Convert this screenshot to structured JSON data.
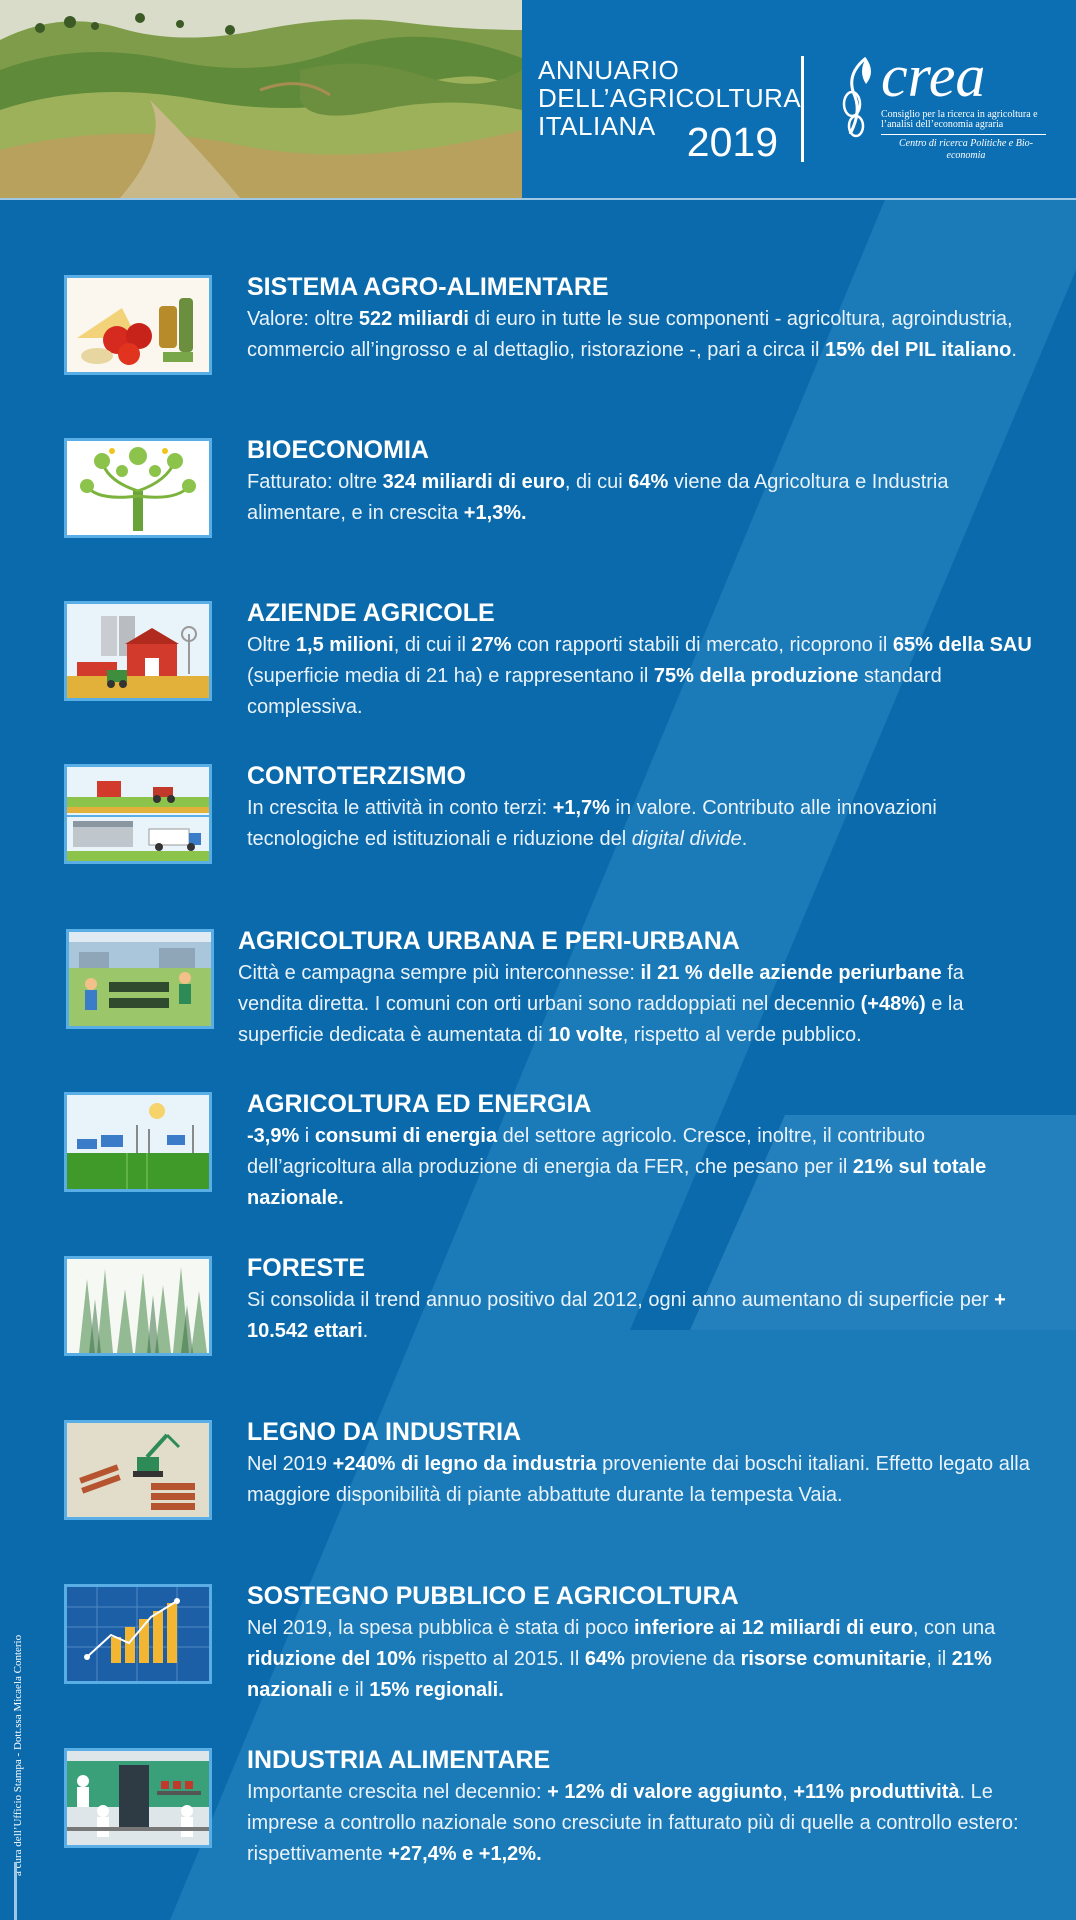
{
  "header": {
    "title_line1": "ANNUARIO",
    "title_line2": "DELL’AGRICOLTURA",
    "title_line3": "ITALIANA",
    "year": "2019",
    "logo_word": "crea",
    "logo_subtitle": "Consiglio per la ricerca in agricoltura e l’analisi dell’economia agraria",
    "logo_centre": "Centro di ricerca Politiche e Bio-economia"
  },
  "sections": [
    {
      "icon": "food-basket-image",
      "title": "SISTEMA AGRO-ALIMENTARE",
      "parts": [
        {
          "t": "Valore: oltre ",
          "b": false
        },
        {
          "t": "522 miliardi",
          "b": true
        },
        {
          "t": " di euro in tutte le sue componenti - agricoltura, agroindustria, commercio all’ingrosso e al dettaglio, ristorazione -, pari a circa il ",
          "b": false
        },
        {
          "t": "15% del PIL italiano",
          "b": true
        },
        {
          "t": ".",
          "b": false
        }
      ]
    },
    {
      "icon": "tree-image",
      "title": "BIOECONOMIA",
      "parts": [
        {
          "t": "Fatturato: oltre ",
          "b": false
        },
        {
          "t": "324 miliardi di euro",
          "b": true
        },
        {
          "t": ", di cui ",
          "b": false
        },
        {
          "t": "64%",
          "b": true
        },
        {
          "t": " viene da Agricoltura e Industria alimentare, e in crescita ",
          "b": false
        },
        {
          "t": "+1,3%.",
          "b": true
        }
      ]
    },
    {
      "icon": "farm-image",
      "title": "AZIENDE AGRICOLE",
      "parts": [
        {
          "t": "Oltre ",
          "b": false
        },
        {
          "t": "1,5 milioni",
          "b": true
        },
        {
          "t": ", di cui il ",
          "b": false
        },
        {
          "t": "27%",
          "b": true
        },
        {
          "t": "  con rapporti stabili di mercato,  ricoprono il ",
          "b": false
        },
        {
          "t": "65% della SAU",
          "b": true
        },
        {
          "t": " (superficie media di 21 ha) e rappresentano il ",
          "b": false
        },
        {
          "t": "75% della produzione",
          "b": true
        },
        {
          "t": " standard complessiva.",
          "b": false
        }
      ]
    },
    {
      "icon": "contractor-image",
      "title": "CONTOTERZISMO",
      "parts": [
        {
          "t": "In crescita le attività in conto terzi: ",
          "b": false
        },
        {
          "t": "+1,7%",
          "b": true
        },
        {
          "t": " in valore. Contributo alle innovazioni tecnologiche ed istituzionali e riduzione del ",
          "b": false
        },
        {
          "t": "digital divide",
          "b": false,
          "i": true
        },
        {
          "t": ".",
          "b": false
        }
      ]
    },
    {
      "icon": "urban-garden-image",
      "title": "AGRICOLTURA URBANA E PERI-URBANA",
      "parts": [
        {
          "t": "Città e campagna sempre più interconnesse: ",
          "b": false
        },
        {
          "t": "il 21 % delle aziende periurbane",
          "b": true
        },
        {
          "t": " fa vendita diretta. I comuni con orti urbani sono raddoppiati nel decennio ",
          "b": false
        },
        {
          "t": "(+48%)",
          "b": true
        },
        {
          "t": " e la superficie dedicata è aumentata di ",
          "b": false
        },
        {
          "t": "10 volte",
          "b": true
        },
        {
          "t": ", rispetto al verde pubblico.",
          "b": false
        }
      ]
    },
    {
      "icon": "energy-landscape-image",
      "title": "AGRICOLTURA ED ENERGIA",
      "parts": [
        {
          "t": "-3,9%",
          "b": true
        },
        {
          "t": " i ",
          "b": false
        },
        {
          "t": "consumi di energia",
          "b": true
        },
        {
          "t": " del settore agricolo. Cresce, inoltre, il contributo dell’agricoltura alla produzione di energia da FER, che pesano per  il ",
          "b": false
        },
        {
          "t": "21% sul totale nazionale.",
          "b": true
        }
      ]
    },
    {
      "icon": "forest-image",
      "title": "FORESTE",
      "parts": [
        {
          "t": "Si  consolida il trend annuo positivo dal 2012, ogni anno aumentano di superficie  per ",
          "b": false
        },
        {
          "t": "+ 10.542 ettari",
          "b": true
        },
        {
          "t": ".",
          "b": false
        }
      ]
    },
    {
      "icon": "timber-machine-image",
      "title": "LEGNO DA INDUSTRIA",
      "parts": [
        {
          "t": "Nel 2019 ",
          "b": false
        },
        {
          "t": "+240% di legno da industria",
          "b": true
        },
        {
          "t": " proveniente dai boschi italiani. Effetto legato alla maggiore disponibilità di piante abbattute durante la tempesta Vaia.",
          "b": false
        }
      ]
    },
    {
      "icon": "public-funding-image",
      "title": "SOSTEGNO PUBBLICO E AGRICOLTURA",
      "parts": [
        {
          "t": "Nel 2019, la spesa pubblica è stata di poco ",
          "b": false
        },
        {
          "t": "inferiore ai 12 miliardi di euro",
          "b": true
        },
        {
          "t": ", con una ",
          "b": false
        },
        {
          "t": "riduzione del  10%",
          "b": true
        },
        {
          "t": " rispetto al 2015. Il ",
          "b": false
        },
        {
          "t": "64%",
          "b": true
        },
        {
          "t": " proviene da ",
          "b": false
        },
        {
          "t": "risorse comunitarie",
          "b": true
        },
        {
          "t": ", il ",
          "b": false
        },
        {
          "t": "21% nazionali",
          "b": true
        },
        {
          "t": " e il ",
          "b": false
        },
        {
          "t": "15% regionali.",
          "b": true
        }
      ]
    },
    {
      "icon": "food-industry-image",
      "title": "INDUSTRIA ALIMENTARE",
      "parts": [
        {
          "t": "Importante crescita nel decennio: ",
          "b": false
        },
        {
          "t": "+ 12% di valore aggiunto",
          "b": true
        },
        {
          "t": ", ",
          "b": false
        },
        {
          "t": "+11% produttività",
          "b": true
        },
        {
          "t": ". Le imprese a controllo nazionale sono cresciute in fatturato più di quelle a controllo estero: rispettivamente ",
          "b": false
        },
        {
          "t": "+27,4% e +1,2%.",
          "b": true
        }
      ]
    }
  ],
  "credit": "a cura dell’Ufficio Stampa - Dott.ssa Micaela Conterio"
}
